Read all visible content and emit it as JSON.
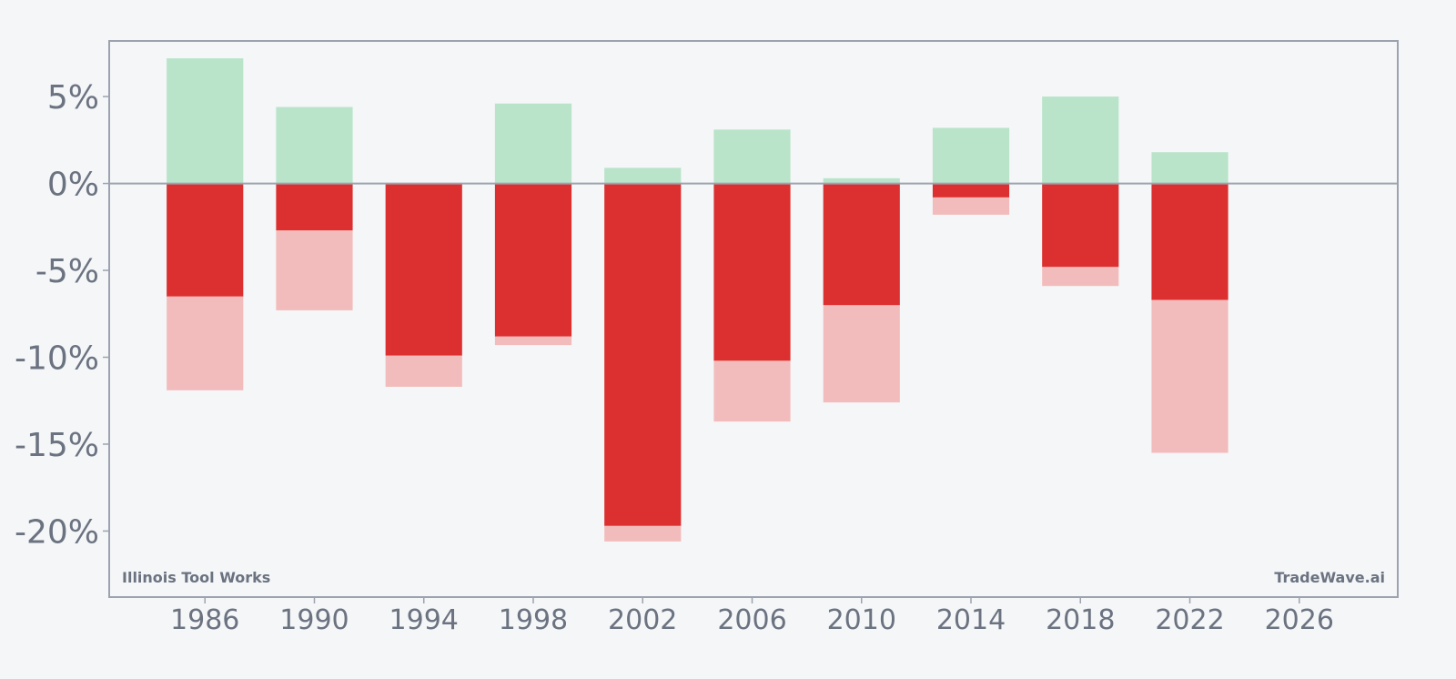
{
  "chart_data": {
    "type": "bar",
    "title": "",
    "xlabel": "",
    "ylabel": "",
    "x": [
      1986,
      1990,
      1994,
      1998,
      2002,
      2006,
      2010,
      2014,
      2018,
      2022
    ],
    "series": [
      {
        "key": "gain",
        "values": [
          7.2,
          4.4,
          0,
          4.6,
          0.9,
          3.1,
          0.3,
          3.2,
          5.0,
          1.8
        ]
      },
      {
        "key": "drawdown",
        "values": [
          -6.5,
          -2.7,
          -9.9,
          -8.8,
          -19.7,
          -10.2,
          -7.0,
          -0.8,
          -4.8,
          -6.7
        ]
      },
      {
        "key": "low",
        "values": [
          -11.9,
          -7.3,
          -11.7,
          -9.3,
          -20.6,
          -13.7,
          -12.6,
          -1.8,
          -5.9,
          -15.5
        ]
      }
    ],
    "x_ticks": [
      "1986",
      "1990",
      "1994",
      "1998",
      "2002",
      "2006",
      "2010",
      "2014",
      "2018",
      "2022",
      "2026"
    ],
    "x_tick_values": [
      1986,
      1990,
      1994,
      1998,
      2002,
      2006,
      2010,
      2014,
      2018,
      2022,
      2026
    ],
    "y_ticks": [
      "5%",
      "0%",
      "-5%",
      "-10%",
      "-15%",
      "-20%"
    ],
    "y_tick_values": [
      5,
      0,
      -5,
      -10,
      -15,
      -20
    ],
    "xlim": [
      1982.5,
      2029.6
    ],
    "ylim": [
      -23.8,
      8.2
    ],
    "grid": false,
    "colors": {
      "gain": "#b9e4c9",
      "drawdown": "#dc3030",
      "low": "#f3bcbc",
      "axis": "#9ca3af",
      "text": "#6b7280",
      "background": "#f4f6f8"
    }
  },
  "watermark": {
    "left": "Illinois Tool Works",
    "right": "TradeWave.ai"
  }
}
